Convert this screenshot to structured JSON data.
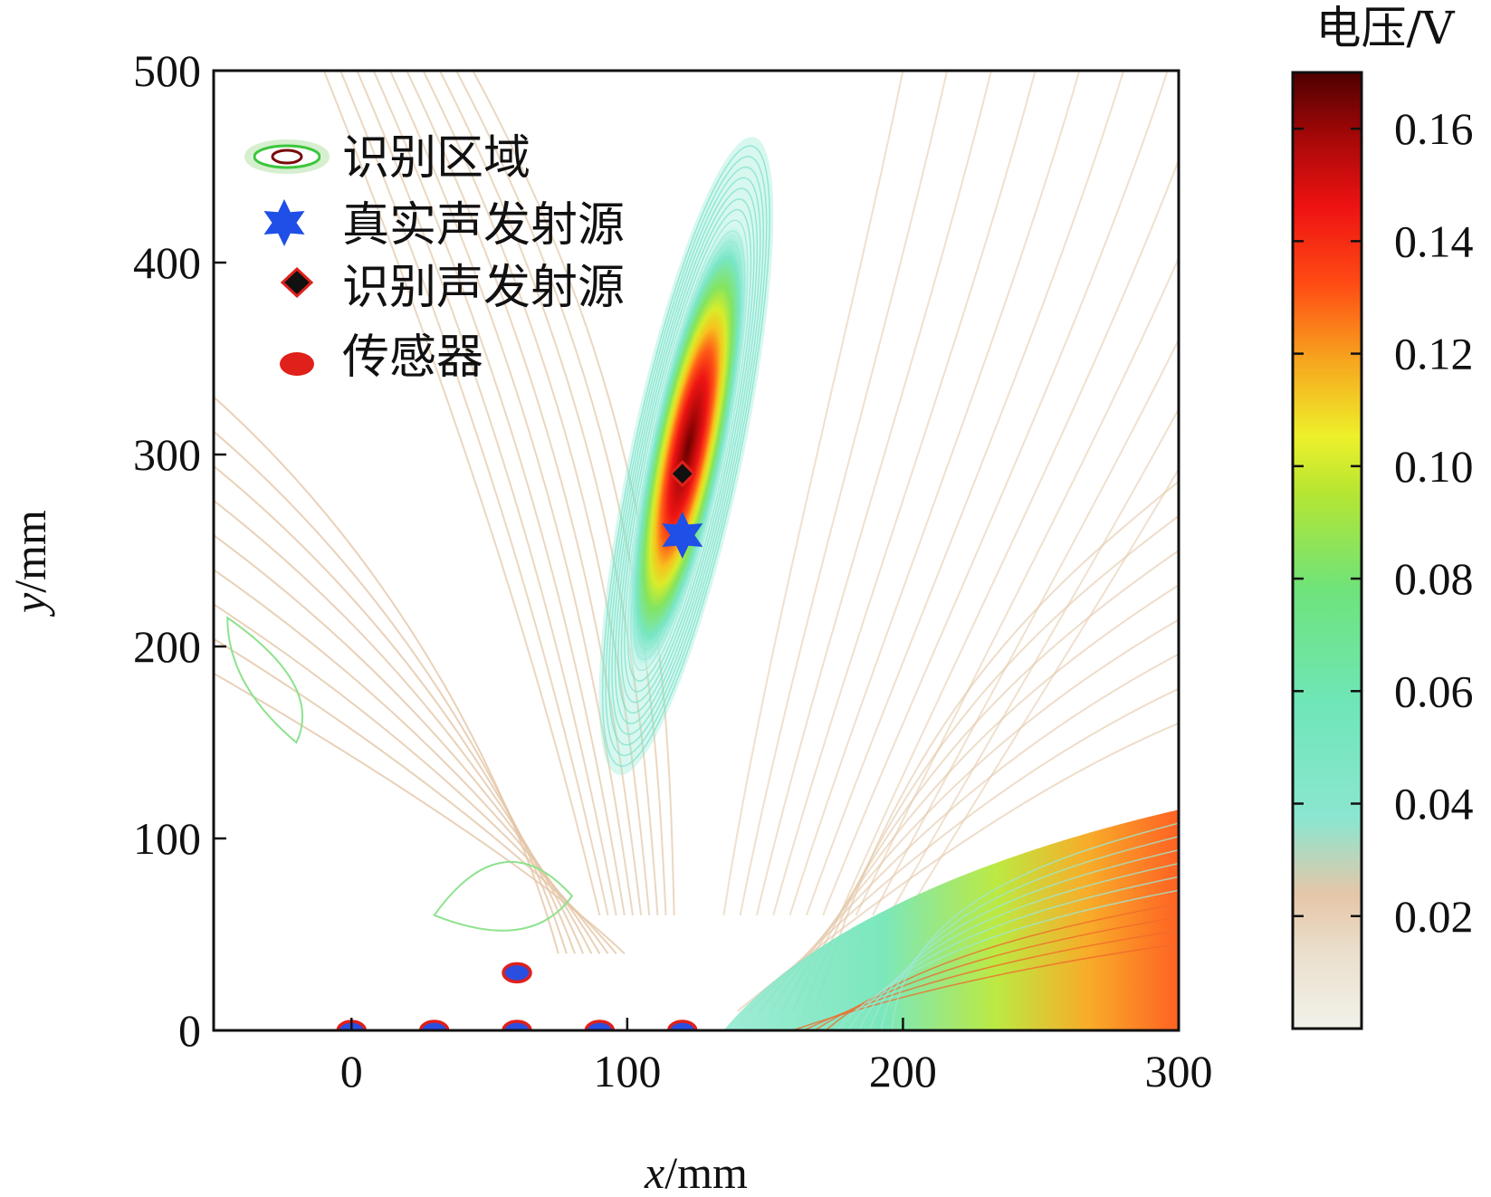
{
  "chart_data": {
    "type": "contour",
    "title": "",
    "xlabel_var": "x",
    "xlabel_unit": "/mm",
    "ylabel_var": "y",
    "ylabel_unit": "/mm",
    "xlim": [
      -50,
      300
    ],
    "ylim": [
      0,
      500
    ],
    "xticks": [
      0,
      100,
      200,
      300
    ],
    "yticks": [
      0,
      100,
      200,
      300,
      400,
      500
    ],
    "xtick_labels": [
      "0",
      "100",
      "200",
      "300"
    ],
    "ytick_labels": [
      "0",
      "100",
      "200",
      "300",
      "400",
      "500"
    ],
    "colorbar": {
      "title": "电压/V",
      "min": 0.0,
      "max": 0.17,
      "ticks": [
        0.02,
        0.04,
        0.06,
        0.08,
        0.1,
        0.12,
        0.14,
        0.16
      ],
      "tick_labels": [
        "0.02",
        "0.04",
        "0.06",
        "0.08",
        "0.10",
        "0.12",
        "0.14",
        "0.16"
      ],
      "colormap": [
        "#f2f2ea",
        "#e8cdb2",
        "#7fe8d4",
        "#6ee59a",
        "#9fe03c",
        "#ecef28",
        "#f7a01c",
        "#ff3c14",
        "#e51010",
        "#a20808",
        "#5a0000"
      ]
    },
    "legend": {
      "placement": "top-left",
      "items": [
        {
          "label": "识别区域",
          "marker": "contour-ellipse"
        },
        {
          "label": "真实声发射源",
          "marker": "blue-hexagram"
        },
        {
          "label": "识别声发射源",
          "marker": "black-diamond"
        },
        {
          "label": "传感器",
          "marker": "red-ellipse"
        }
      ]
    },
    "true_source": {
      "x": 120,
      "y": 258
    },
    "identified_source": {
      "x": 120,
      "y": 290
    },
    "sensors": [
      {
        "x": 0,
        "y": 0
      },
      {
        "x": 30,
        "y": 0
      },
      {
        "x": 60,
        "y": 0
      },
      {
        "x": 90,
        "y": 0
      },
      {
        "x": 120,
        "y": 0
      },
      {
        "x": 60,
        "y": 30
      }
    ],
    "peak_region": {
      "x_center": 120,
      "y_center": 290,
      "peak_value": 0.165
    },
    "grid": false
  }
}
